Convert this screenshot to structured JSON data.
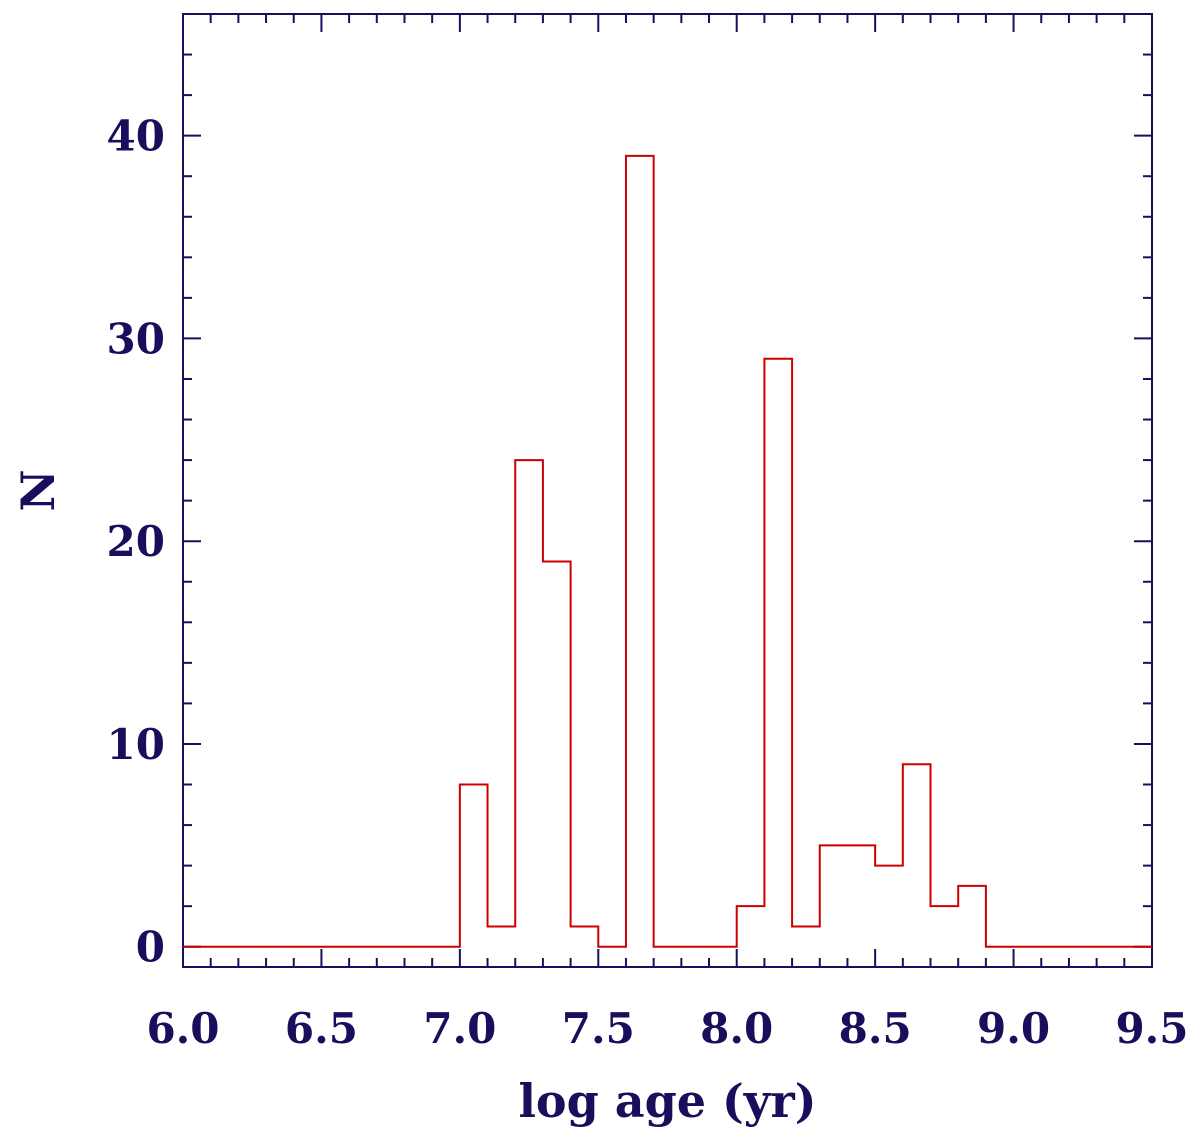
{
  "chart_data": {
    "type": "histogram-step",
    "title": "",
    "xlabel": "log age (yr)",
    "ylabel": "N",
    "xlim": [
      6.0,
      9.5
    ],
    "ylim": [
      -1,
      46
    ],
    "xticks": [
      6.0,
      6.5,
      7.0,
      7.5,
      8.0,
      8.5,
      9.0,
      9.5
    ],
    "xtick_labels": [
      "6.0",
      "6.5",
      "7.0",
      "7.5",
      "8.0",
      "8.5",
      "9.0",
      "9.5"
    ],
    "yticks": [
      0,
      10,
      20,
      30,
      40
    ],
    "ytick_labels": [
      "0",
      "10",
      "20",
      "30",
      "40"
    ],
    "bins": [
      {
        "x0": 6.0,
        "x1": 7.0,
        "count": 0
      },
      {
        "x0": 7.0,
        "x1": 7.1,
        "count": 8
      },
      {
        "x0": 7.1,
        "x1": 7.2,
        "count": 1
      },
      {
        "x0": 7.2,
        "x1": 7.3,
        "count": 24
      },
      {
        "x0": 7.3,
        "x1": 7.4,
        "count": 19
      },
      {
        "x0": 7.4,
        "x1": 7.5,
        "count": 1
      },
      {
        "x0": 7.5,
        "x1": 7.6,
        "count": 0
      },
      {
        "x0": 7.6,
        "x1": 7.7,
        "count": 39
      },
      {
        "x0": 7.7,
        "x1": 8.0,
        "count": 0
      },
      {
        "x0": 8.0,
        "x1": 8.1,
        "count": 2
      },
      {
        "x0": 8.1,
        "x1": 8.2,
        "count": 29
      },
      {
        "x0": 8.2,
        "x1": 8.3,
        "count": 1
      },
      {
        "x0": 8.3,
        "x1": 8.5,
        "count": 5
      },
      {
        "x0": 8.5,
        "x1": 8.6,
        "count": 4
      },
      {
        "x0": 8.6,
        "x1": 8.7,
        "count": 9
      },
      {
        "x0": 8.7,
        "x1": 8.8,
        "count": 2
      },
      {
        "x0": 8.8,
        "x1": 8.9,
        "count": 3
      },
      {
        "x0": 8.9,
        "x1": 9.5,
        "count": 0
      }
    ],
    "grid": false,
    "colors": {
      "series": "#cc0000",
      "axes": "#1a0d5c"
    }
  }
}
